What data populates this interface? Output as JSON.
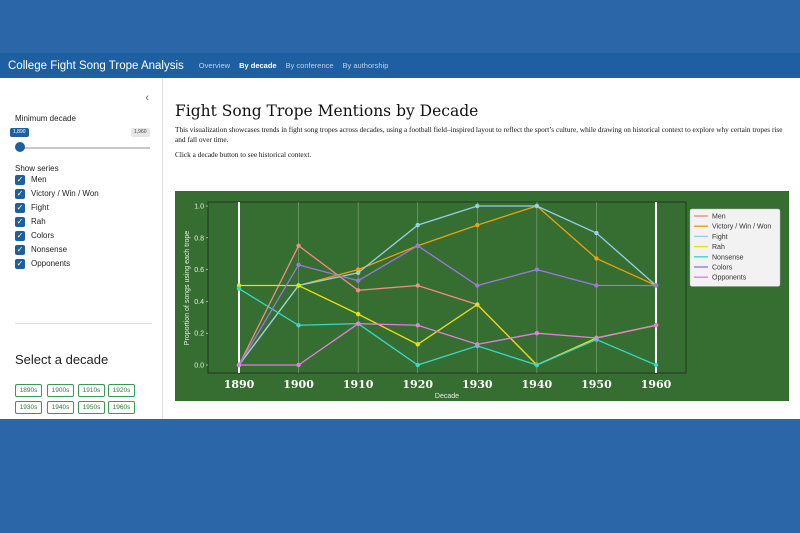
{
  "app": {
    "title": "College Fight Song Trope Analysis",
    "tabs": [
      "Overview",
      "By decade",
      "By conference",
      "By authorship"
    ],
    "active_tab": "By decade"
  },
  "sidebar": {
    "collapse_icon": "chevron-left-icon",
    "slider": {
      "label": "Minimum decade",
      "min": 1890,
      "max": 1960,
      "value": 1890,
      "min_badge": "1,890",
      "max_badge": "1,960"
    },
    "series_title": "Show series",
    "series": [
      {
        "label": "Men",
        "checked": true
      },
      {
        "label": "Victory / Win / Won",
        "checked": true
      },
      {
        "label": "Fight",
        "checked": true
      },
      {
        "label": "Rah",
        "checked": true
      },
      {
        "label": "Colors",
        "checked": true
      },
      {
        "label": "Nonsense",
        "checked": true
      },
      {
        "label": "Opponents",
        "checked": true
      }
    ],
    "select_title": "Select a decade",
    "decades": [
      "1890s",
      "1900s",
      "1910s",
      "1920s",
      "1930s",
      "1940s",
      "1950s",
      "1960s"
    ]
  },
  "main": {
    "title": "Fight Song Trope Mentions by Decade",
    "description": "This visualization showcases trends in fight song tropes across decades, using a football field–inspired layout to reflect the sport’s culture, while drawing on historical context to explore why certain tropes rise and fall over time.",
    "hint": "Click a decade button to see historical context."
  },
  "colors": {
    "brand": "#1d5fa0",
    "field": "#366d30",
    "button_border": "#3a9a55"
  },
  "chart_data": {
    "type": "line",
    "xlabel": "Decade",
    "ylabel": "Proportion of songs using each trope",
    "x": [
      1890,
      1900,
      1910,
      1920,
      1930,
      1940,
      1950,
      1960
    ],
    "ylim": [
      -0.05,
      1.05
    ],
    "yticks": [
      0.0,
      0.2,
      0.4,
      0.6,
      0.8,
      1.0
    ],
    "ytick_labels": [
      "0.0",
      "0.2",
      "0.4",
      "0.6",
      "0.8",
      "1.0"
    ],
    "legend_position": "top-right",
    "series": [
      {
        "name": "Men",
        "color": "#ee8d80",
        "values": [
          0.0,
          0.75,
          0.47,
          0.5,
          0.38,
          0.0,
          0.17,
          0.25
        ]
      },
      {
        "name": "Victory / Win / Won",
        "color": "#eaa20e",
        "values": [
          0.0,
          0.5,
          0.6,
          0.75,
          0.88,
          1.0,
          0.67,
          0.5
        ]
      },
      {
        "name": "Fight",
        "color": "#94d0ea",
        "values": [
          0.0,
          0.5,
          0.58,
          0.88,
          1.0,
          1.0,
          0.83,
          0.5
        ]
      },
      {
        "name": "Rah",
        "color": "#e8e010",
        "values": [
          0.5,
          0.5,
          0.32,
          0.13,
          0.38,
          0.0,
          0.17,
          0.25
        ]
      },
      {
        "name": "Nonsense",
        "color": "#3ad8c6",
        "values": [
          0.48,
          0.25,
          0.26,
          0.0,
          0.12,
          0.0,
          0.16,
          0.0
        ]
      },
      {
        "name": "Colors",
        "color": "#9a78e0",
        "values": [
          0.0,
          0.63,
          0.53,
          0.75,
          0.5,
          0.6,
          0.5,
          0.5
        ]
      },
      {
        "name": "Opponents",
        "color": "#e080e0",
        "values": [
          0.0,
          0.0,
          0.26,
          0.25,
          0.13,
          0.2,
          0.17,
          0.25
        ]
      }
    ]
  }
}
